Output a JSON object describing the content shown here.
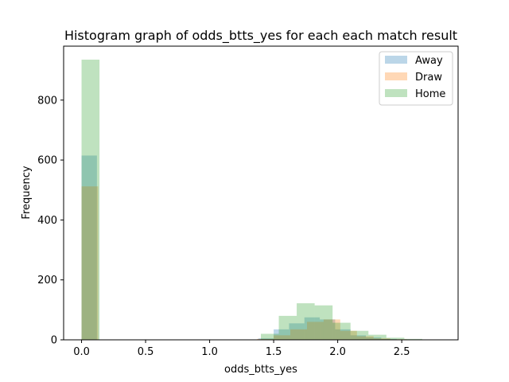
{
  "chart_data": {
    "type": "bar",
    "title": "Histogram graph of odds_btts_yes for each each match result",
    "xlabel": "odds_btts_yes",
    "ylabel": "Frequency",
    "xlim": [
      -0.14,
      2.94
    ],
    "ylim": [
      0,
      980
    ],
    "xticks": [
      0.0,
      0.5,
      1.0,
      1.5,
      2.0,
      2.5
    ],
    "xtick_labels": [
      "0.0",
      "0.5",
      "1.0",
      "1.5",
      "2.0",
      "2.5"
    ],
    "yticks": [
      0,
      200,
      400,
      600,
      800
    ],
    "ytick_labels": [
      "0",
      "200",
      "400",
      "600",
      "800"
    ],
    "grid": false,
    "legend_position": "top-right",
    "bar_opacity": 0.3,
    "series": [
      {
        "name": "Away",
        "color": "#1f77b4",
        "bin_width": 0.12,
        "bins": [
          {
            "x": 0.0,
            "count": 615
          },
          {
            "x": 1.38,
            "count": 5
          },
          {
            "x": 1.5,
            "count": 35
          },
          {
            "x": 1.62,
            "count": 55
          },
          {
            "x": 1.74,
            "count": 75
          },
          {
            "x": 1.86,
            "count": 68
          },
          {
            "x": 1.98,
            "count": 35
          },
          {
            "x": 2.1,
            "count": 15
          },
          {
            "x": 2.22,
            "count": 8
          },
          {
            "x": 2.34,
            "count": 3
          },
          {
            "x": 2.46,
            "count": 1
          }
        ]
      },
      {
        "name": "Draw",
        "color": "#ff7f0e",
        "bin_width": 0.13,
        "bins": [
          {
            "x": 0.0,
            "count": 512
          },
          {
            "x": 1.37,
            "count": 3
          },
          {
            "x": 1.5,
            "count": 15
          },
          {
            "x": 1.63,
            "count": 35
          },
          {
            "x": 1.76,
            "count": 60
          },
          {
            "x": 1.89,
            "count": 68
          },
          {
            "x": 2.02,
            "count": 30
          },
          {
            "x": 2.15,
            "count": 12
          },
          {
            "x": 2.28,
            "count": 5
          },
          {
            "x": 2.41,
            "count": 2
          },
          {
            "x": 2.54,
            "count": 1
          }
        ]
      },
      {
        "name": "Home",
        "color": "#2ca02c",
        "bin_width": 0.14,
        "bins": [
          {
            "x": 0.0,
            "count": 935
          },
          {
            "x": 1.4,
            "count": 20
          },
          {
            "x": 1.54,
            "count": 80
          },
          {
            "x": 1.68,
            "count": 122
          },
          {
            "x": 1.82,
            "count": 115
          },
          {
            "x": 1.96,
            "count": 57
          },
          {
            "x": 2.1,
            "count": 30
          },
          {
            "x": 2.24,
            "count": 17
          },
          {
            "x": 2.38,
            "count": 7
          },
          {
            "x": 2.52,
            "count": 3
          },
          {
            "x": 2.66,
            "count": 1
          }
        ]
      }
    ]
  }
}
